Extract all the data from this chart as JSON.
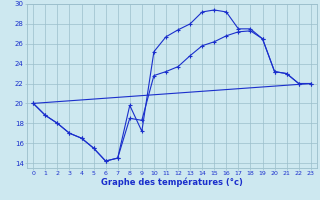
{
  "xlabel": "Graphe des températures (°c)",
  "background_color": "#cde8f0",
  "grid_color": "#9bbfcc",
  "line_color": "#1a2fcc",
  "xlim": [
    -0.5,
    23.5
  ],
  "ylim": [
    13.5,
    30.0
  ],
  "xticks": [
    0,
    1,
    2,
    3,
    4,
    5,
    6,
    7,
    8,
    9,
    10,
    11,
    12,
    13,
    14,
    15,
    16,
    17,
    18,
    19,
    20,
    21,
    22,
    23
  ],
  "yticks": [
    14,
    16,
    18,
    20,
    22,
    24,
    26,
    28,
    30
  ],
  "series1_x": [
    0,
    1,
    2,
    3,
    4,
    5,
    6,
    7,
    8,
    9,
    10,
    11,
    12,
    13,
    14,
    15,
    16,
    17,
    18,
    19,
    20,
    21,
    22,
    23
  ],
  "series1_y": [
    20.0,
    18.8,
    18.0,
    17.0,
    16.5,
    15.5,
    14.2,
    14.5,
    19.8,
    17.2,
    25.2,
    26.7,
    27.4,
    28.0,
    29.2,
    29.4,
    29.2,
    27.5,
    27.5,
    26.5,
    23.2,
    23.0,
    22.0,
    22.0
  ],
  "series2_x": [
    0,
    1,
    2,
    3,
    4,
    5,
    6,
    7,
    8,
    9,
    10,
    11,
    12,
    13,
    14,
    15,
    16,
    17,
    18,
    19,
    20,
    21,
    22,
    23
  ],
  "series2_y": [
    20.0,
    18.8,
    18.0,
    17.0,
    16.5,
    15.5,
    14.2,
    14.5,
    18.5,
    18.3,
    22.8,
    23.2,
    23.7,
    24.8,
    25.8,
    26.2,
    26.8,
    27.2,
    27.3,
    26.5,
    23.2,
    23.0,
    22.0,
    22.0
  ],
  "series3_x": [
    0,
    23
  ],
  "series3_y": [
    20.0,
    22.0
  ]
}
